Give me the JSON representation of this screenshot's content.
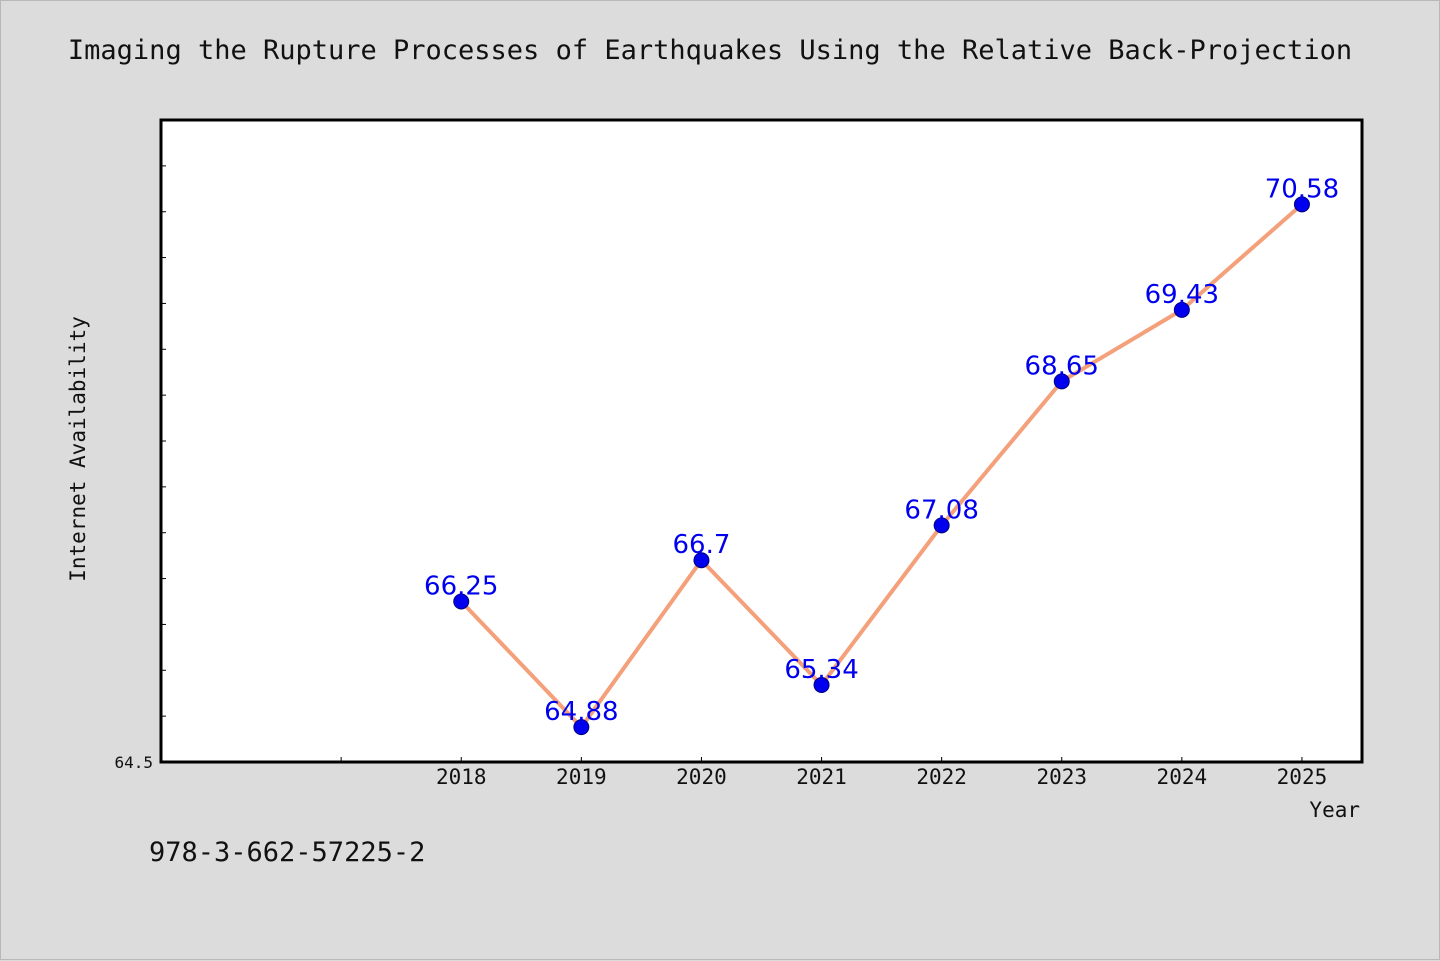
{
  "page": {
    "isbn": "978-3-662-57225-2"
  },
  "chart_data": {
    "type": "line",
    "title": "Imaging the Rupture Processes of Earthquakes Using the Relative Back-Projection",
    "xlabel": "Year",
    "ylabel": "Internet Availability",
    "categories": [
      "2018",
      "2019",
      "2020",
      "2021",
      "2022",
      "2023",
      "2024",
      "2025"
    ],
    "x_axis_slots": 10,
    "first_category_slot": 2,
    "series": [
      {
        "values": [
          66.25,
          64.88,
          66.7,
          65.34,
          67.08,
          68.65,
          69.43,
          70.58
        ],
        "line_color": "#f4a07a",
        "marker_color": "#0000ee"
      }
    ],
    "data_labels": [
      "66.25",
      "64.88",
      "66.7",
      "65.34",
      "67.08",
      "68.65",
      "69.43",
      "70.58"
    ],
    "label_color": "#0000ee",
    "ylim": [
      64.5,
      71.5
    ],
    "y_tick_labels": [
      "64.5"
    ],
    "y_minor_tick_step": 0.5,
    "grid": false,
    "legend": "none"
  }
}
